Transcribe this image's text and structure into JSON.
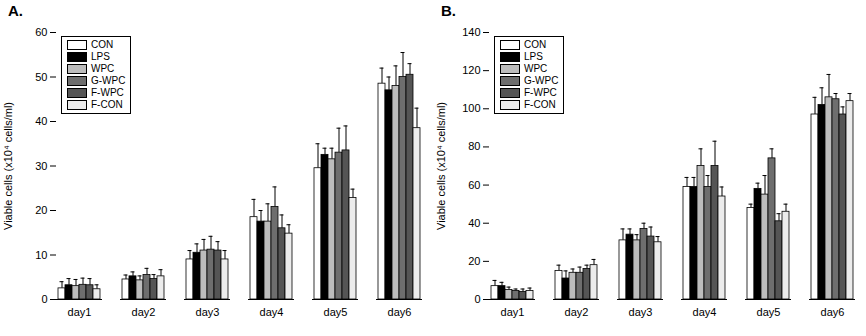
{
  "chart_data": [
    {
      "type": "bar",
      "title": "A.",
      "y_label": "Viable cells (x10⁴ cells/ml)",
      "categories": [
        "day1",
        "day2",
        "day3",
        "day4",
        "day5",
        "day6"
      ],
      "ylim": [
        0,
        60
      ],
      "yticks": [
        0,
        10,
        20,
        30,
        40,
        50,
        60
      ],
      "legend": "top-left",
      "series": [
        {
          "name": "CON",
          "color": "#ffffff",
          "values": [
            2.5,
            4.5,
            9,
            18.5,
            29.5,
            48.5
          ],
          "error": [
            1.5,
            1,
            2,
            4,
            5.5,
            3.5
          ]
        },
        {
          "name": "LPS",
          "color": "#000000",
          "values": [
            3.2,
            5.2,
            10.5,
            17.5,
            32.5,
            47
          ],
          "error": [
            1.5,
            1,
            2,
            2.5,
            1.5,
            3
          ]
        },
        {
          "name": "WPC",
          "color": "#bdbdbd",
          "values": [
            3.0,
            4.3,
            11,
            17.5,
            31.5,
            48
          ],
          "error": [
            1.5,
            1,
            2.5,
            4,
            2.5,
            4.5
          ]
        },
        {
          "name": "G-WPC",
          "color": "#6e6e6e",
          "values": [
            3.3,
            5.5,
            11.2,
            20.8,
            33,
            50
          ],
          "error": [
            1.5,
            1.5,
            3,
            4.5,
            5.5,
            5.5
          ]
        },
        {
          "name": "F-WPC",
          "color": "#555555",
          "values": [
            3.2,
            4.6,
            11,
            16,
            33.5,
            50.5
          ],
          "error": [
            1.5,
            1,
            2,
            3,
            5.5,
            2.5
          ]
        },
        {
          "name": "F-CON",
          "color": "#ececec",
          "values": [
            2.3,
            5.2,
            9,
            14.8,
            22.8,
            38.5
          ],
          "error": [
            1,
            1.5,
            2,
            2,
            2,
            4.5
          ]
        }
      ]
    },
    {
      "type": "bar",
      "title": "B.",
      "y_label": "Viable cells (x10⁴ cells/ml)",
      "categories": [
        "day1",
        "day2",
        "day3",
        "day4",
        "day5",
        "day6"
      ],
      "ylim": [
        0,
        140
      ],
      "yticks": [
        0,
        20,
        40,
        60,
        80,
        100,
        120,
        140
      ],
      "legend": "top-left",
      "series": [
        {
          "name": "CON",
          "color": "#ffffff",
          "values": [
            7,
            15,
            31,
            59,
            48,
            97
          ],
          "error": [
            3,
            3,
            6,
            5,
            2,
            9
          ]
        },
        {
          "name": "LPS",
          "color": "#000000",
          "values": [
            7,
            11,
            34,
            59,
            58,
            102
          ],
          "error": [
            2,
            4,
            3,
            5,
            3,
            9
          ]
        },
        {
          "name": "WPC",
          "color": "#bdbdbd",
          "values": [
            5,
            14,
            31,
            70,
            55,
            106
          ],
          "error": [
            1.5,
            2,
            3,
            9,
            10,
            12
          ]
        },
        {
          "name": "G-WPC",
          "color": "#6e6e6e",
          "values": [
            4.5,
            14,
            37,
            59,
            74,
            105
          ],
          "error": [
            1,
            3,
            3,
            6,
            5,
            3
          ]
        },
        {
          "name": "F-WPC",
          "color": "#555555",
          "values": [
            4,
            16,
            33,
            70,
            41,
            97
          ],
          "error": [
            1.5,
            2,
            5,
            13,
            4,
            4
          ]
        },
        {
          "name": "F-CON",
          "color": "#ececec",
          "values": [
            4.5,
            18,
            30,
            54,
            46,
            104
          ],
          "error": [
            1.5,
            3,
            3,
            5,
            4,
            4
          ]
        }
      ]
    }
  ]
}
